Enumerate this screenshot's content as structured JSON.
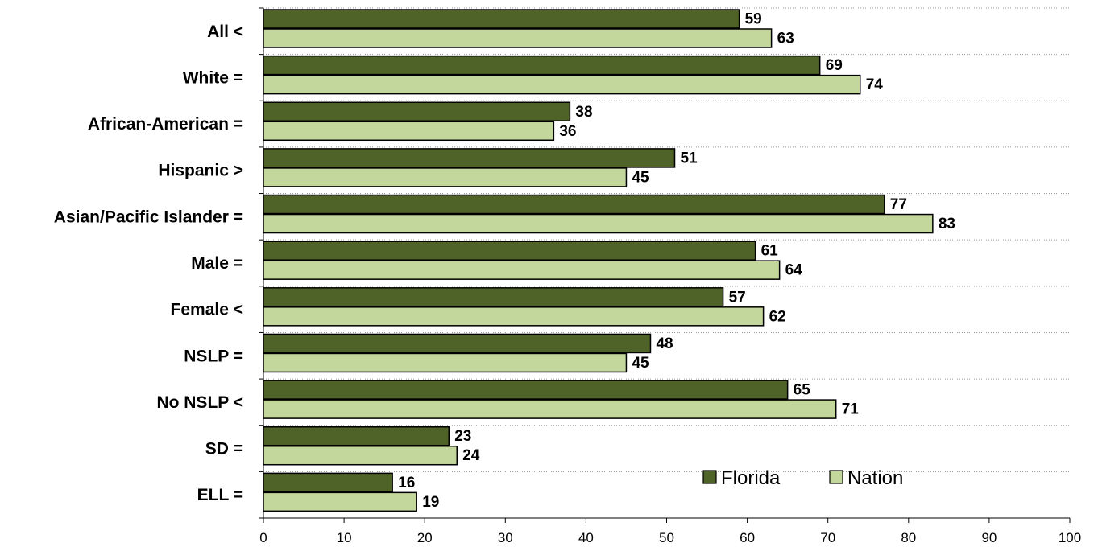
{
  "chart_data": {
    "type": "bar",
    "orientation": "horizontal",
    "categories": [
      "All <",
      "White =",
      "African-American =",
      "Hispanic >",
      "Asian/Pacific Islander =",
      "Male =",
      "Female <",
      "NSLP =",
      "No NSLP <",
      "SD =",
      "ELL ="
    ],
    "series": [
      {
        "name": "Florida",
        "color": "#4f6228",
        "values": [
          59,
          69,
          38,
          51,
          77,
          61,
          57,
          48,
          65,
          23,
          16
        ]
      },
      {
        "name": "Nation",
        "color": "#c3d69b",
        "values": [
          63,
          74,
          36,
          45,
          83,
          64,
          62,
          45,
          71,
          24,
          19
        ]
      }
    ],
    "xlim": [
      0,
      100
    ],
    "xticks": [
      0,
      10,
      20,
      30,
      40,
      50,
      60,
      70,
      80,
      90,
      100
    ],
    "grid": "horizontal dotted lines between categories",
    "legend": "bottom-right",
    "title": "",
    "xlabel": "",
    "ylabel": ""
  }
}
